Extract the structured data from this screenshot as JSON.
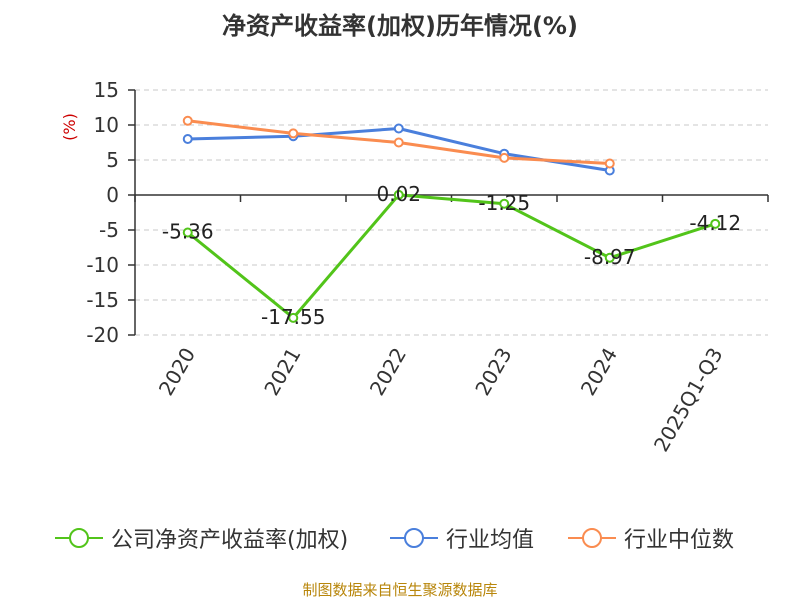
{
  "chart_data": {
    "type": "line",
    "title": "净资产收益率(加权)历年情况(%)",
    "ylabel": "(%)",
    "xlabel": "",
    "categories": [
      "2020",
      "2021",
      "2022",
      "2023",
      "2024",
      "2025Q1-Q3"
    ],
    "ylim": [
      -20,
      15
    ],
    "yticks": [
      15,
      10,
      5,
      0,
      -5,
      -10,
      -15,
      -20
    ],
    "grid": true,
    "legend_position": "bottom",
    "series": [
      {
        "name": "公司净资产收益率(加权)",
        "color": "#52c41a",
        "values": [
          -5.36,
          -17.55,
          0.02,
          -1.25,
          -8.97,
          -4.12
        ],
        "labels": [
          "-5.36",
          "-17.55",
          "0.02",
          "-1.25",
          "-8.97",
          "-4.12"
        ]
      },
      {
        "name": "行业均值",
        "color": "#4a7fdc",
        "values": [
          8.0,
          8.4,
          9.5,
          5.9,
          3.5,
          null
        ]
      },
      {
        "name": "行业中位数",
        "color": "#fa8c50",
        "values": [
          10.6,
          8.8,
          7.5,
          5.3,
          4.5,
          null
        ]
      }
    ]
  },
  "source": "制图数据来自恒生聚源数据库"
}
